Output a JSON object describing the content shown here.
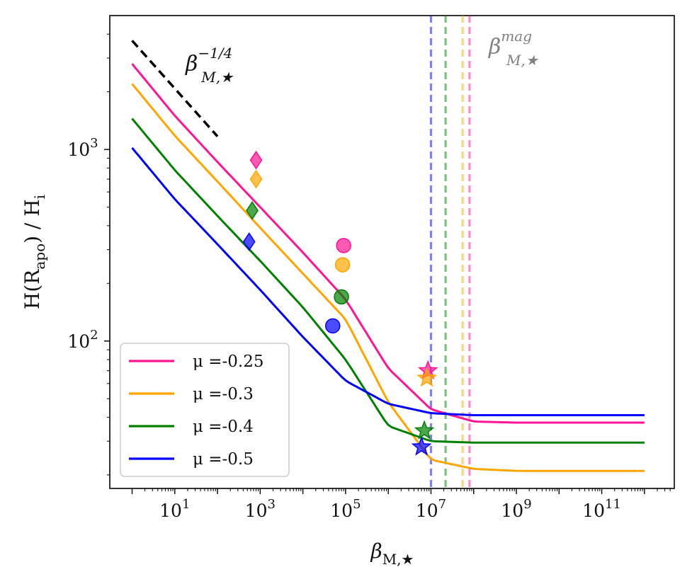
{
  "chart_data": {
    "type": "line",
    "title": "",
    "xlabel": "β_M,★",
    "ylabel": "H(R_apo) / H_i",
    "xscale": "log",
    "yscale": "log",
    "xlim": [
      0.3,
      5000000000000.0
    ],
    "ylim": [
      17,
      5000
    ],
    "xticks": [
      {
        "value": 10,
        "label": "10^1"
      },
      {
        "value": 1000,
        "label": "10^3"
      },
      {
        "value": 100000,
        "label": "10^5"
      },
      {
        "value": 10000000,
        "label": "10^7"
      },
      {
        "value": 1000000000,
        "label": "10^9"
      },
      {
        "value": 100000000000,
        "label": "10^11"
      }
    ],
    "yticks": [
      {
        "value": 100,
        "label": "10^2"
      },
      {
        "value": 1000,
        "label": "10^3"
      }
    ],
    "grid": false,
    "legend_position": "lower-left",
    "series": [
      {
        "name": "μ =-0.25",
        "color": "#ff1493",
        "x": [
          1,
          10,
          100,
          1000,
          10000,
          100000,
          1000000,
          10000000,
          100000000,
          1000000000,
          1000000000000.0
        ],
        "y": [
          2800,
          1500,
          860,
          500,
          290,
          165,
          72,
          44,
          38,
          37.5,
          37.5
        ]
      },
      {
        "name": "μ =-0.3",
        "color": "#ffa500",
        "x": [
          1,
          10,
          100,
          1000,
          10000,
          100000,
          1000000,
          10000000,
          100000000,
          1000000000,
          1000000000000.0
        ],
        "y": [
          2200,
          1180,
          680,
          390,
          225,
          130,
          48,
          24,
          21.5,
          21,
          21
        ]
      },
      {
        "name": "μ =-0.4",
        "color": "#008000",
        "x": [
          1,
          10,
          100,
          1000,
          10000,
          100000,
          1000000,
          10000000,
          100000000,
          1000000000,
          1000000000000.0
        ],
        "y": [
          1450,
          780,
          450,
          262,
          150,
          80,
          36,
          30,
          29.5,
          29.5,
          29.5
        ]
      },
      {
        "name": "μ =-0.5",
        "color": "#0000ff",
        "x": [
          1,
          10,
          100,
          1000,
          10000,
          100000,
          1000000,
          10000000,
          100000000,
          1000000000,
          1000000000000.0
        ],
        "y": [
          1020,
          550,
          320,
          185,
          105,
          62,
          47,
          42,
          41,
          41,
          41
        ]
      }
    ],
    "markers": [
      {
        "marker": "diamond",
        "color": "#ff1493",
        "x": 800,
        "y": 880
      },
      {
        "marker": "diamond",
        "color": "#ffa500",
        "x": 800,
        "y": 700
      },
      {
        "marker": "diamond",
        "color": "#008000",
        "x": 650,
        "y": 480
      },
      {
        "marker": "diamond",
        "color": "#0000ff",
        "x": 550,
        "y": 330
      },
      {
        "marker": "circle",
        "color": "#ff1493",
        "x": 90000,
        "y": 315
      },
      {
        "marker": "circle",
        "color": "#ffa500",
        "x": 85000,
        "y": 250
      },
      {
        "marker": "circle",
        "color": "#008000",
        "x": 80000,
        "y": 170
      },
      {
        "marker": "circle",
        "color": "#0000ff",
        "x": 50000,
        "y": 120
      },
      {
        "marker": "star",
        "color": "#ff1493",
        "x": 8500000,
        "y": 70
      },
      {
        "marker": "star",
        "color": "#ffa500",
        "x": 8000000,
        "y": 64
      },
      {
        "marker": "star",
        "color": "#008000",
        "x": 7000000,
        "y": 34
      },
      {
        "marker": "star",
        "color": "#0000ff",
        "x": 6000000,
        "y": 28
      }
    ],
    "vlines": [
      {
        "color": "#0000ff",
        "x": 10000000
      },
      {
        "color": "#008000",
        "x": 22000000
      },
      {
        "color": "#ffa500",
        "x": 55000000
      },
      {
        "color": "#ff1493",
        "x": 80000000
      }
    ],
    "reference_line": {
      "color": "#000000",
      "x": [
        1,
        100
      ],
      "y": [
        3700,
        1170
      ]
    },
    "annotations": [
      {
        "text": "β_M,★^−1/4",
        "color": "#111111"
      },
      {
        "text": "β_M,★^mag",
        "color": "#808080"
      }
    ]
  }
}
